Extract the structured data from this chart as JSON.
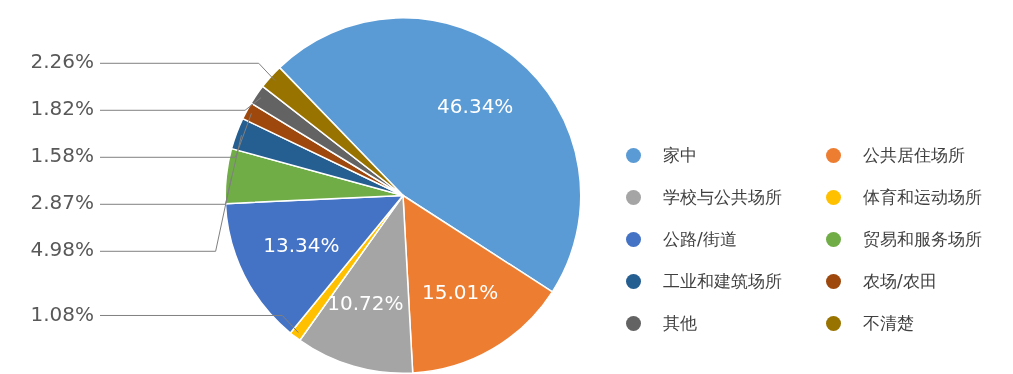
{
  "chart_data": {
    "type": "pie",
    "categories": [
      "家中",
      "公共居住场所",
      "学校与公共场所",
      "体育和运动场所",
      "公路/街道",
      "贸易和服务场所",
      "工业和建筑场所",
      "农场/农田",
      "其他",
      "不清楚"
    ],
    "values": [
      46.34,
      15.01,
      10.72,
      1.08,
      13.34,
      4.98,
      2.87,
      1.58,
      1.82,
      2.26
    ],
    "colors": [
      "#5b9bd5",
      "#ed7d31",
      "#a5a5a5",
      "#ffc000",
      "#4472c4",
      "#70ad47",
      "#255e91",
      "#9e480e",
      "#636363",
      "#997300"
    ],
    "value_labels": [
      "46.34%",
      "15.01%",
      "10.72%",
      "1.08%",
      "13.34%",
      "4.98%",
      "2.87%",
      "1.58%",
      "1.82%",
      "2.26%"
    ],
    "legend": "right"
  }
}
